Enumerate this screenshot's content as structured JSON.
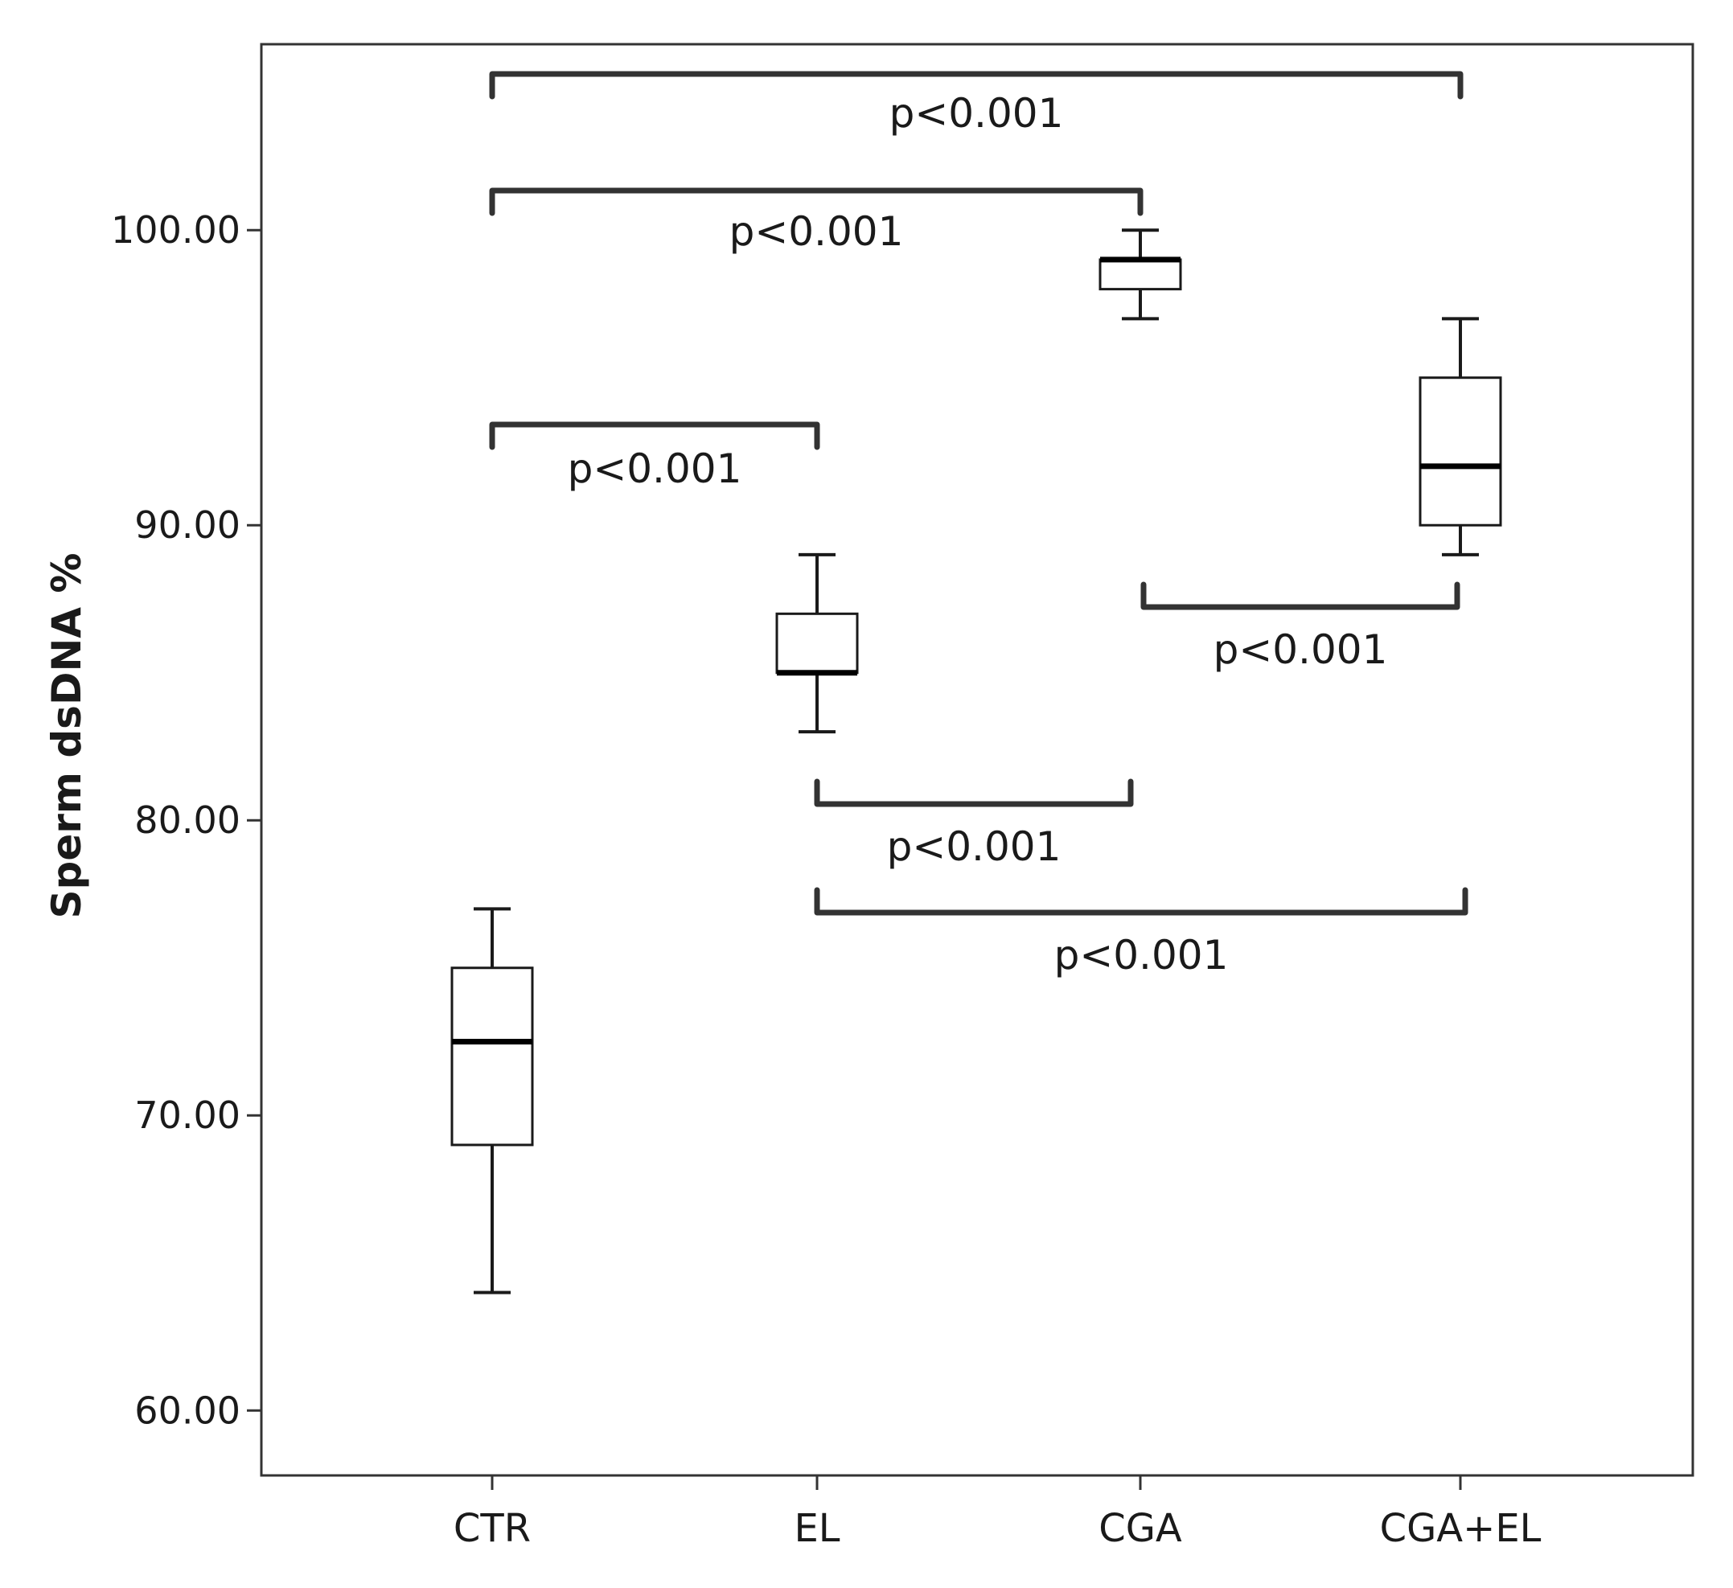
{
  "chart_data": {
    "type": "box",
    "ylabel": "Sperm dsDNA %",
    "xlabel": "",
    "ylim": [
      57.8,
      106.3
    ],
    "yticks": [
      "60.00",
      "70.00",
      "80.00",
      "90.00",
      "100.00"
    ],
    "categories": [
      "CTR",
      "EL",
      "CGA",
      "CGA+EL"
    ],
    "boxes": [
      {
        "category": "CTR",
        "whisker_low": 64,
        "q1": 69,
        "median": 72.5,
        "q3": 75,
        "whisker_high": 77
      },
      {
        "category": "EL",
        "whisker_low": 83,
        "q1": 85,
        "median": 85,
        "q3": 87,
        "whisker_high": 89
      },
      {
        "category": "CGA",
        "whisker_low": 97,
        "q1": 98,
        "median": 99,
        "q3": 99,
        "whisker_high": 100
      },
      {
        "category": "CGA+EL",
        "whisker_low": 89,
        "q1": 90,
        "median": 92,
        "q3": 95,
        "whisker_high": 97
      }
    ],
    "comparisons": [
      {
        "from": "CTR",
        "to": "CGA+EL",
        "label": "p<0.001"
      },
      {
        "from": "CTR",
        "to": "CGA",
        "label": "p<0.001"
      },
      {
        "from": "CTR",
        "to": "EL",
        "label": "p<0.001"
      },
      {
        "from": "CGA",
        "to": "CGA+EL",
        "label": "p<0.001"
      },
      {
        "from": "EL",
        "to": "CGA",
        "label": "p<0.001"
      },
      {
        "from": "EL",
        "to": "CGA+EL",
        "label": "p<0.001"
      }
    ],
    "grid": false,
    "legend": "none"
  }
}
